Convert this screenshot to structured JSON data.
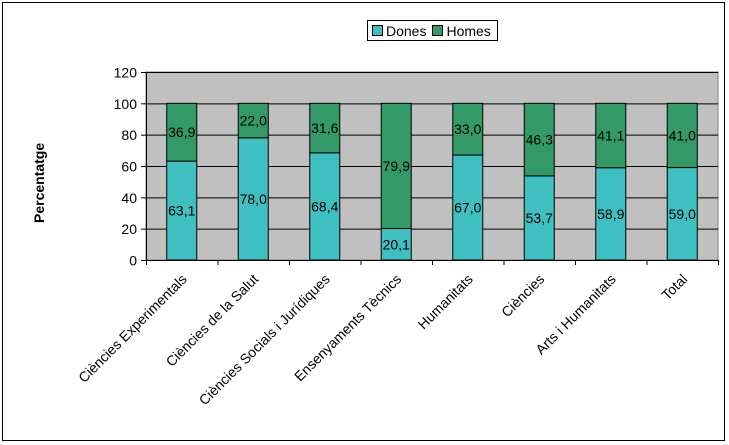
{
  "chart_data": {
    "type": "bar",
    "stacked": true,
    "percent_stacked": true,
    "categories": [
      "Ciències Experimentals",
      "Ciències de la Salut",
      "Ciències Socials i Jurídiques",
      "Ensenyaments Tècnics",
      "Humanitats",
      "Ciències",
      "Arts i Humanitats",
      "Total"
    ],
    "series": [
      {
        "name": "Dones",
        "color": "#3fbfbf",
        "values": [
          63.1,
          78.0,
          68.4,
          20.1,
          67.0,
          53.7,
          58.9,
          59.0
        ],
        "labels": [
          "63,1",
          "78,0",
          "68,4",
          "20,1",
          "67,0",
          "53,7",
          "58,9",
          "59,0"
        ]
      },
      {
        "name": "Homes",
        "color": "#339966",
        "values": [
          36.9,
          22.0,
          31.6,
          79.9,
          33.0,
          46.3,
          41.1,
          41.0
        ],
        "labels": [
          "36,9",
          "22,0",
          "31,6",
          "79,9",
          "33,0",
          "46,3",
          "41,1",
          "41,0"
        ]
      }
    ],
    "ylabel": "Percentatge",
    "xlabel": "",
    "ylim": [
      0,
      120
    ],
    "yticks": [
      0,
      20,
      40,
      60,
      80,
      100,
      120
    ],
    "plot_background": "#c0c0c0",
    "grid": true,
    "legend_position": "top"
  }
}
